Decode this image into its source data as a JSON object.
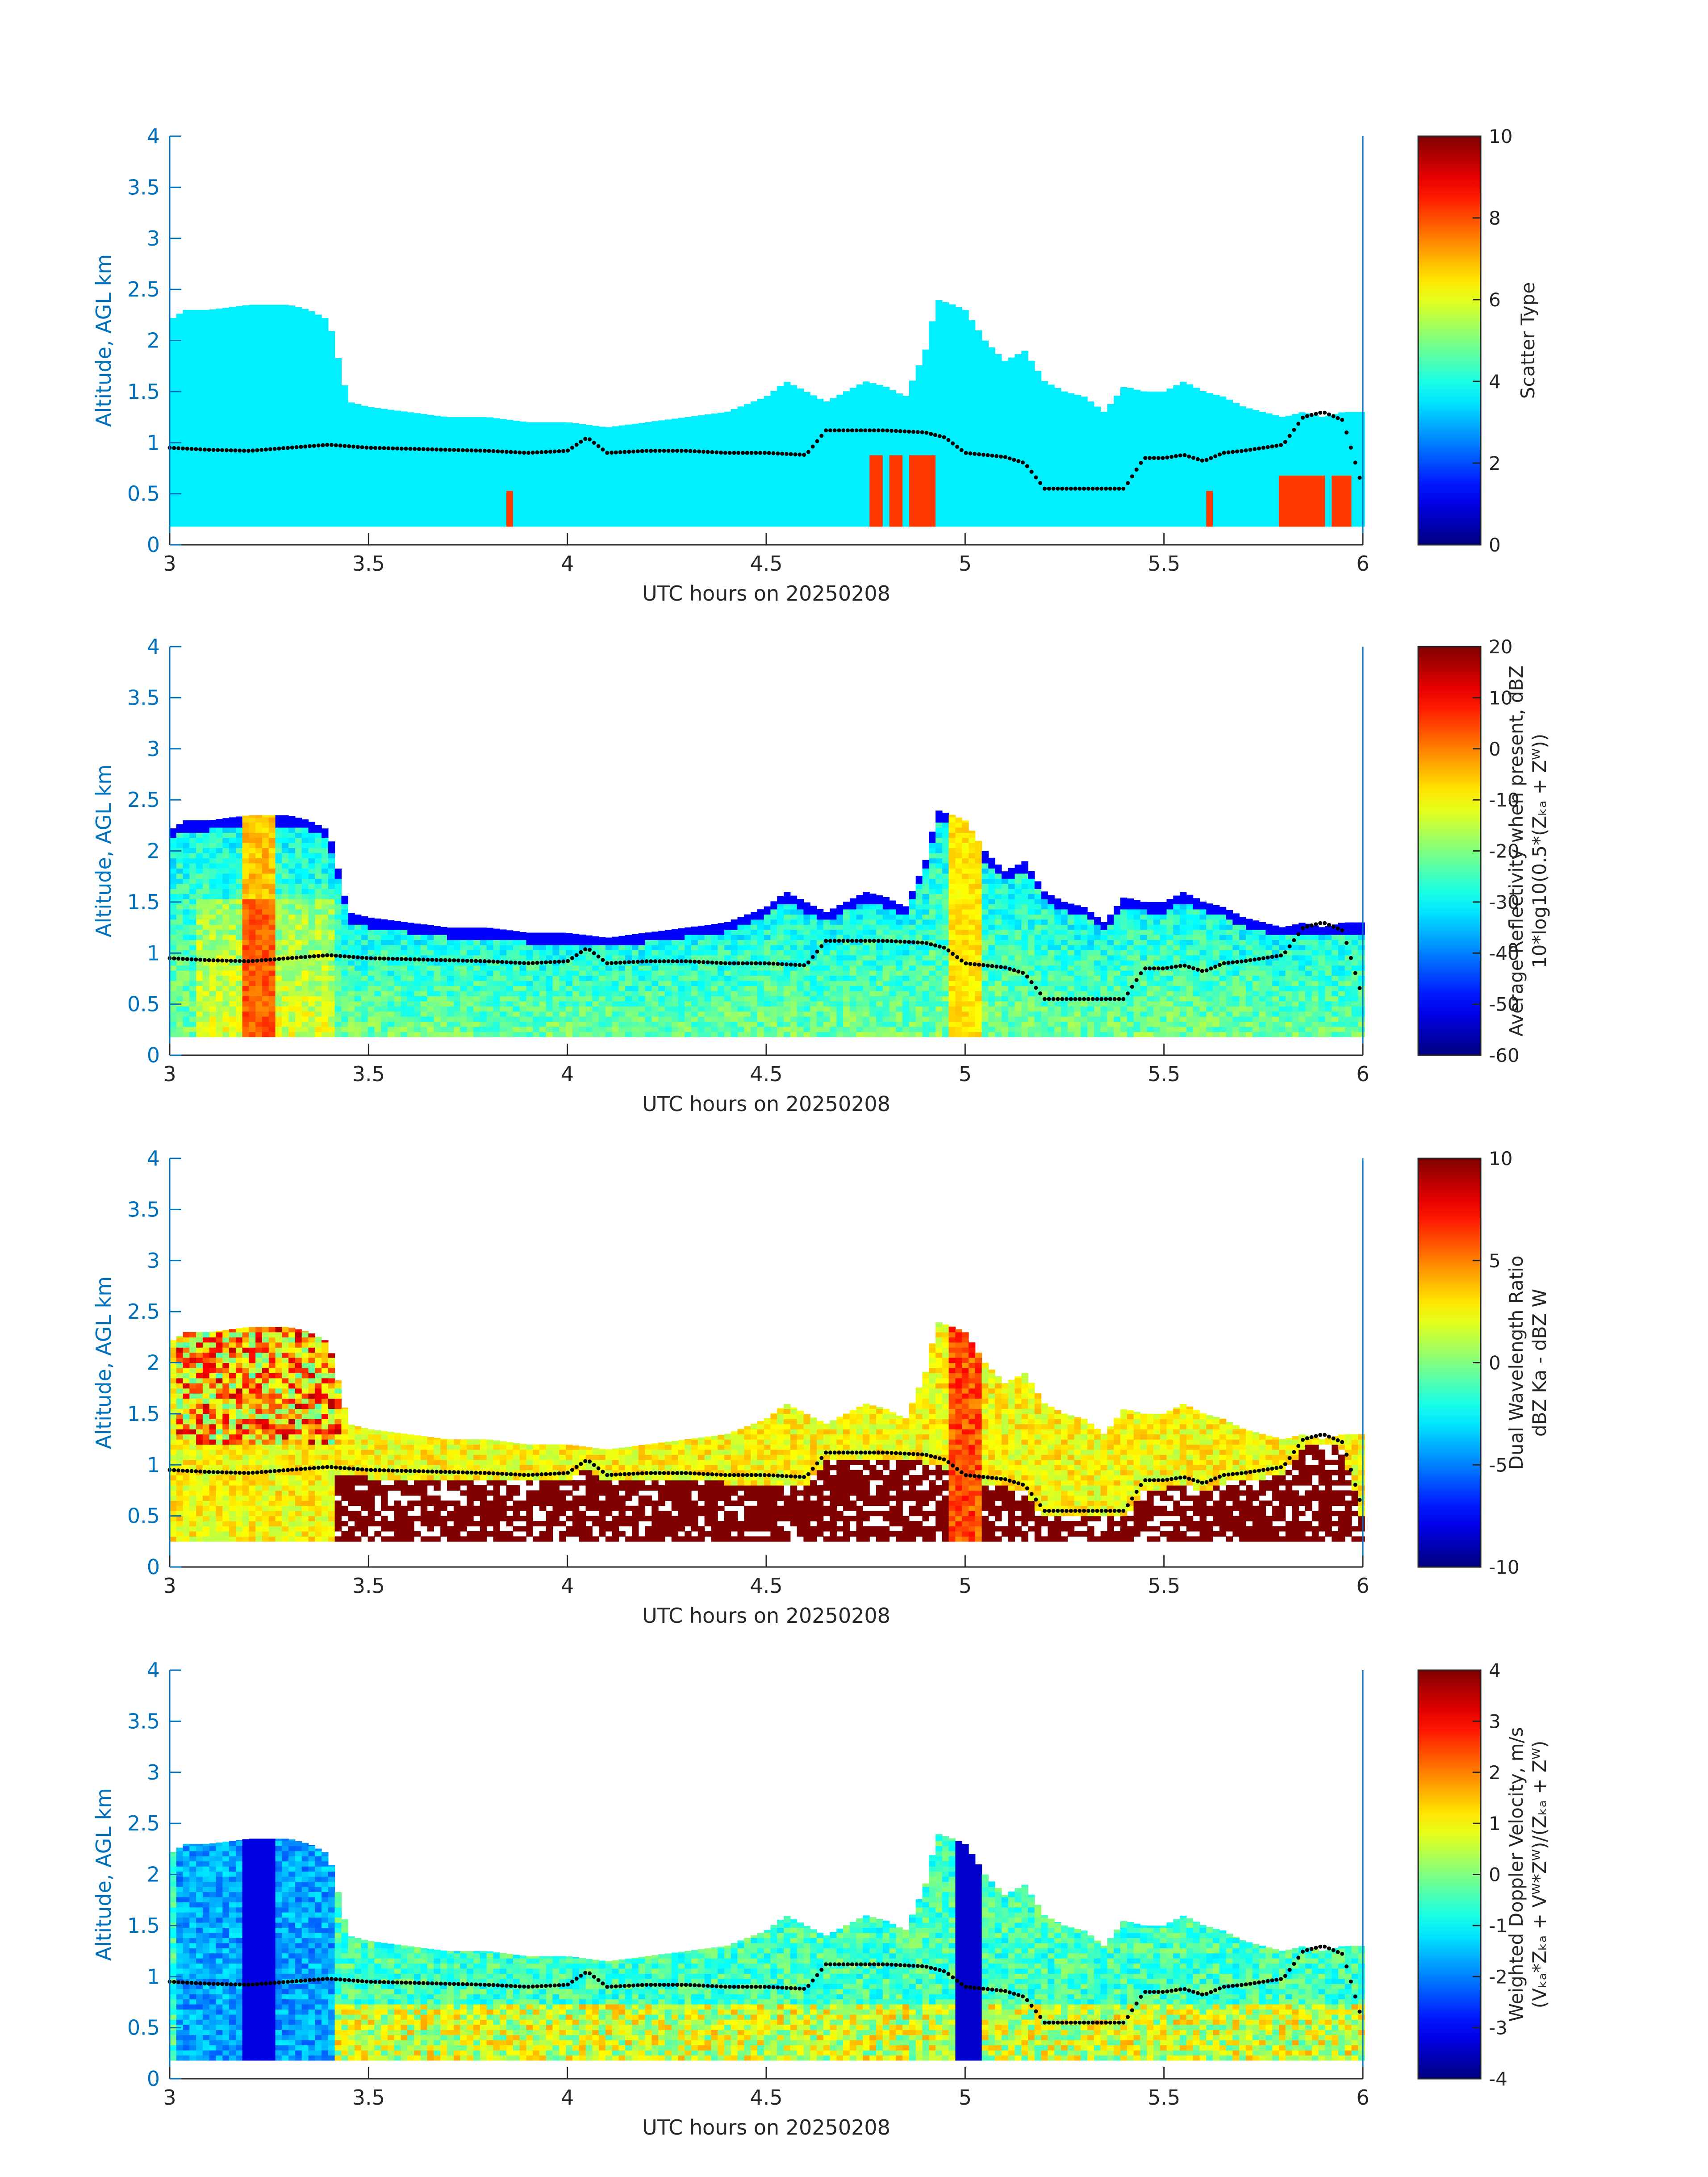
{
  "figure": {
    "date": "20250208"
  },
  "chart_data": [
    {
      "type": "heatmap",
      "title": "",
      "xlabel": "UTC hours on 20250208",
      "ylabel": "Altitude, AGL km",
      "xlim": [
        3,
        6
      ],
      "ylim": [
        0,
        4
      ],
      "xticks": [
        "3",
        "3.5",
        "4",
        "4.5",
        "5",
        "5.5",
        "6"
      ],
      "yticks": [
        "0",
        "0.5",
        "1",
        "1.5",
        "2",
        "2.5",
        "3",
        "3.5",
        "4"
      ],
      "colorbar": {
        "label_lines": [
          "Scatter Type"
        ],
        "ticks": [
          "0",
          "2",
          "4",
          "6",
          "8",
          "10"
        ],
        "range": [
          0,
          10
        ],
        "colormap": "jet"
      },
      "field": "scatter_type"
    },
    {
      "type": "heatmap",
      "title": "",
      "xlabel": "UTC hours on 20250208",
      "ylabel": "Altitude, AGL km",
      "xlim": [
        3,
        6
      ],
      "ylim": [
        0,
        4
      ],
      "xticks": [
        "3",
        "3.5",
        "4",
        "4.5",
        "5",
        "5.5",
        "6"
      ],
      "yticks": [
        "0",
        "0.5",
        "1",
        "1.5",
        "2",
        "2.5",
        "3",
        "3.5",
        "4"
      ],
      "colorbar": {
        "label_lines": [
          "Average Reflectivity when present, dBZ",
          "10*log10(0.5*(Zₖₐ + Zᵂ))"
        ],
        "ticks": [
          "-60",
          "-50",
          "-40",
          "-30",
          "-20",
          "-10",
          "0",
          "10",
          "20"
        ],
        "range": [
          -60,
          20
        ],
        "colormap": "jet"
      },
      "field": "reflectivity"
    },
    {
      "type": "heatmap",
      "title": "",
      "xlabel": "UTC hours on 20250208",
      "ylabel": "Altitude, AGL km",
      "xlim": [
        3,
        6
      ],
      "ylim": [
        0,
        4
      ],
      "xticks": [
        "3",
        "3.5",
        "4",
        "4.5",
        "5",
        "5.5",
        "6"
      ],
      "yticks": [
        "0",
        "0.5",
        "1",
        "1.5",
        "2",
        "2.5",
        "3",
        "3.5",
        "4"
      ],
      "colorbar": {
        "label_lines": [
          "Dual Wavelength Ratio",
          "dBZ Ka - dBZ W"
        ],
        "ticks": [
          "-10",
          "-5",
          "0",
          "5",
          "10"
        ],
        "range": [
          -10,
          10
        ],
        "colormap": "jet"
      },
      "field": "dwr"
    },
    {
      "type": "heatmap",
      "title": "",
      "xlabel": "UTC hours on 20250208",
      "ylabel": "Altitude, AGL km",
      "xlim": [
        3,
        6
      ],
      "ylim": [
        0,
        4
      ],
      "xticks": [
        "3",
        "3.5",
        "4",
        "4.5",
        "5",
        "5.5",
        "6"
      ],
      "yticks": [
        "0",
        "0.5",
        "1",
        "1.5",
        "2",
        "2.5",
        "3",
        "3.5",
        "4"
      ],
      "colorbar": {
        "label_lines": [
          "Weighted Doppler Velocity, m/s",
          "(Vₖₐ*Zₖₐ + Vᵂ*Zᵂ)/(Zₖₐ + Zᵂ)"
        ],
        "ticks": [
          "-4",
          "-3",
          "-2",
          "-1",
          "0",
          "1",
          "2",
          "3",
          "4"
        ],
        "range": [
          -4,
          4
        ],
        "colormap": "jet"
      },
      "field": "doppler"
    }
  ],
  "cloud_top_km": {
    "x": [
      3.0,
      3.04,
      3.1,
      3.2,
      3.3,
      3.35,
      3.4,
      3.45,
      3.5,
      3.6,
      3.7,
      3.8,
      3.9,
      4.0,
      4.1,
      4.2,
      4.3,
      4.4,
      4.5,
      4.55,
      4.6,
      4.65,
      4.7,
      4.75,
      4.8,
      4.85,
      4.9,
      4.93,
      4.97,
      5.0,
      5.05,
      5.1,
      5.15,
      5.2,
      5.25,
      5.3,
      5.35,
      5.4,
      5.45,
      5.5,
      5.55,
      5.6,
      5.65,
      5.7,
      5.75,
      5.8,
      5.85,
      5.9,
      5.95,
      6.0
    ],
    "y": [
      2.2,
      2.3,
      2.3,
      2.35,
      2.35,
      2.3,
      2.2,
      1.4,
      1.35,
      1.3,
      1.25,
      1.25,
      1.2,
      1.2,
      1.15,
      1.2,
      1.25,
      1.3,
      1.45,
      1.6,
      1.5,
      1.4,
      1.5,
      1.6,
      1.55,
      1.45,
      1.9,
      2.4,
      2.35,
      2.3,
      2.0,
      1.8,
      1.9,
      1.6,
      1.5,
      1.45,
      1.3,
      1.55,
      1.5,
      1.5,
      1.6,
      1.5,
      1.45,
      1.35,
      1.3,
      1.25,
      1.3,
      1.25,
      1.3,
      1.3
    ]
  },
  "boundary_layer_km": {
    "x": [
      3.0,
      3.1,
      3.2,
      3.3,
      3.4,
      3.5,
      3.6,
      3.7,
      3.8,
      3.9,
      4.0,
      4.05,
      4.1,
      4.2,
      4.3,
      4.4,
      4.5,
      4.6,
      4.65,
      4.7,
      4.8,
      4.9,
      4.95,
      5.0,
      5.1,
      5.15,
      5.2,
      5.3,
      5.4,
      5.45,
      5.5,
      5.55,
      5.6,
      5.65,
      5.7,
      5.8,
      5.85,
      5.9,
      5.95,
      6.0
    ],
    "y": [
      0.95,
      0.93,
      0.92,
      0.95,
      0.98,
      0.95,
      0.94,
      0.93,
      0.92,
      0.9,
      0.92,
      1.05,
      0.9,
      0.92,
      0.92,
      0.9,
      0.9,
      0.88,
      1.12,
      1.12,
      1.12,
      1.1,
      1.05,
      0.9,
      0.86,
      0.8,
      0.55,
      0.55,
      0.55,
      0.85,
      0.85,
      0.88,
      0.82,
      0.9,
      0.92,
      0.98,
      1.25,
      1.3,
      1.22,
      0.55
    ]
  }
}
